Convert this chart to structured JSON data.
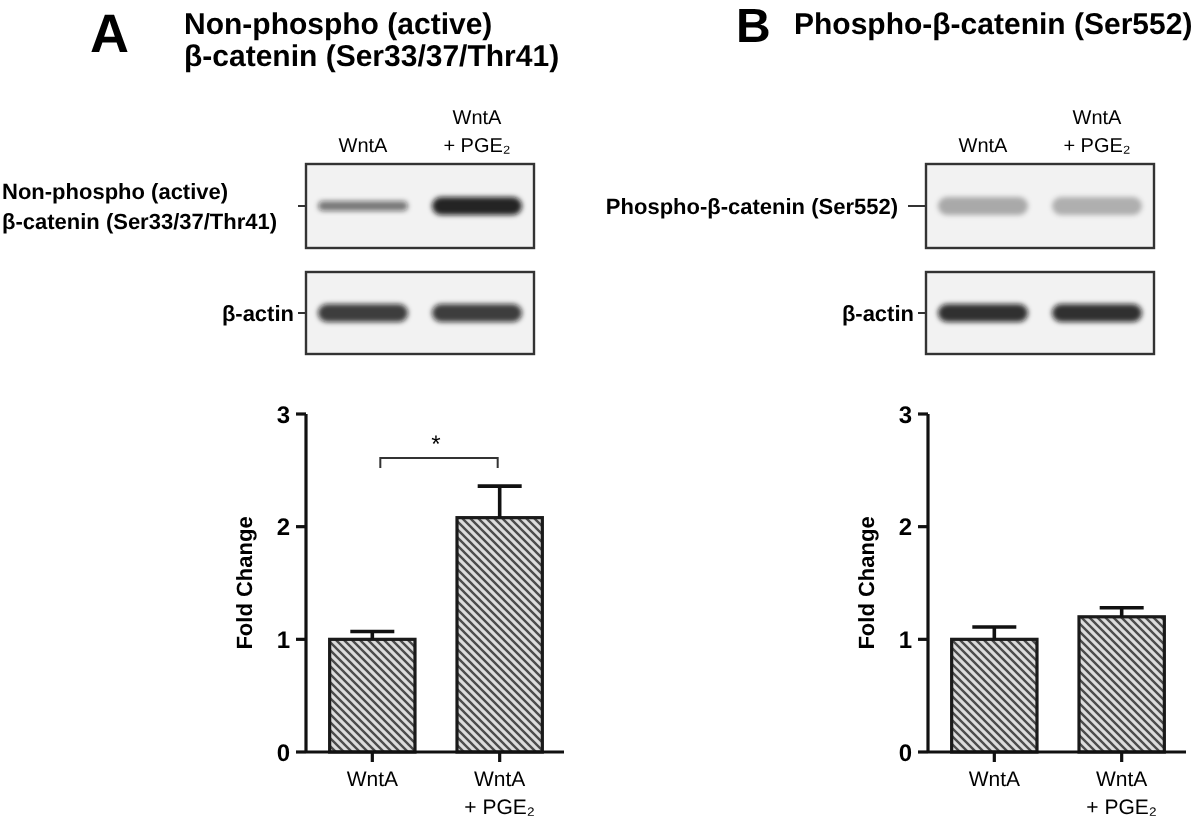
{
  "chart_data": [
    {
      "type": "bar",
      "title": "Non-phospho (active)\nβ-catenin (Ser33/37/Thr41)",
      "categories": [
        "WntA",
        "WntA\n+ PGE₂"
      ],
      "values": [
        1.0,
        2.08
      ],
      "errors": [
        [
          1.0,
          1.07
        ],
        [
          2.08,
          2.36
        ]
      ],
      "color": "#1a1a1a",
      "ylabel": "Fold Change",
      "ylim": [
        0,
        3
      ],
      "yticks": [
        0,
        1,
        2,
        3
      ],
      "annotations": [
        "A",
        "Non-phospho (active)\nβ-catenin (Ser33/37/Thr41)",
        "β-actin",
        "*"
      ]
    },
    {
      "type": "bar",
      "title": "Phospho-β-catenin (Ser552)",
      "categories": [
        "WntA",
        "WntA\n+ PGE₂"
      ],
      "values": [
        1.0,
        1.2
      ],
      "errors": [
        [
          1.0,
          1.11
        ],
        [
          1.2,
          1.28
        ]
      ],
      "color": "#1a1a1a",
      "ylabel": "Fold Change",
      "ylim": [
        0,
        3
      ],
      "yticks": [
        0,
        1,
        2,
        3
      ],
      "annotations": [
        "B",
        "Phospho-β-catenin (Ser552)",
        "β-actin"
      ]
    }
  ]
}
